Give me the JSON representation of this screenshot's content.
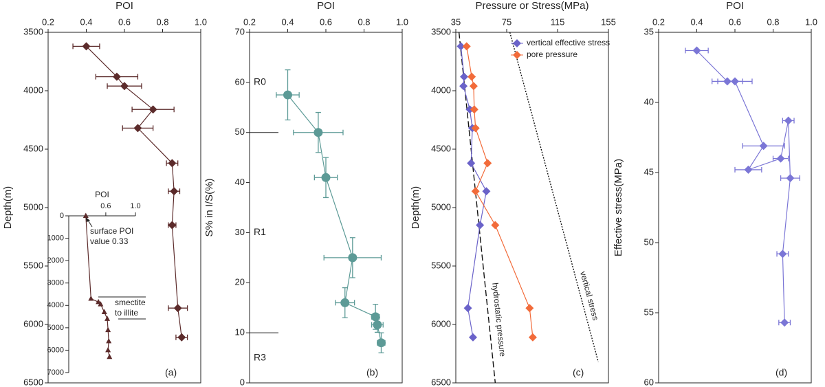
{
  "chart_data": [
    {
      "type": "line",
      "panel": "(a)",
      "xlabel": "POI",
      "ylabel": "Depth(m)",
      "xlim": [
        0.2,
        1
      ],
      "xticks": [
        0.2,
        0.4,
        0.6,
        0.8,
        {
          "value": 1,
          "label": "1.0"
        }
      ],
      "ylim": [
        3500,
        6500
      ],
      "yticks": [
        3500,
        4000,
        4500,
        5000,
        5500,
        6000,
        6500
      ],
      "y_inverted": true,
      "marker": "diamond",
      "color": "#5c2b2b",
      "x": [
        0.4,
        0.56,
        0.6,
        0.75,
        0.67,
        0.85,
        0.86,
        0.85,
        0.88,
        0.9
      ],
      "y": [
        3620,
        3880,
        3960,
        4160,
        4320,
        4620,
        4860,
        5150,
        5860,
        6110
      ],
      "xerr": [
        0.07,
        0.11,
        0.09,
        0.11,
        0.08,
        0.03,
        0.03,
        0.02,
        0.05,
        0.03
      ]
    },
    {
      "type": "line",
      "xlabel": "POI",
      "xlim": [
        0.1,
        1
      ],
      "xticks": [
        0.6,
        {
          "value": 1,
          "label": "1.0"
        }
      ],
      "ylim": [
        0,
        7000
      ],
      "yticks": [
        0,
        1000,
        2000,
        3000,
        4000,
        5000,
        6000,
        7000
      ],
      "y_inverted": true,
      "marker": "triangle",
      "color": "#5c2b2b",
      "x": [
        0.33,
        0.4,
        0.5,
        0.53,
        0.58,
        0.62,
        0.63,
        0.64,
        0.63,
        0.65
      ],
      "y": [
        0,
        3700,
        3850,
        3950,
        4300,
        4600,
        5100,
        5600,
        6000,
        6300
      ],
      "annotations": [
        {
          "text": "surface POI value 0.33"
        },
        {
          "text": "smectite to illite"
        }
      ]
    },
    {
      "type": "line",
      "panel": "(b)",
      "xlabel": "POI",
      "ylabel": "S% in I/S(%)",
      "xlim": [
        0.2,
        1
      ],
      "xticks": [
        0.2,
        0.4,
        0.6,
        0.8,
        {
          "value": 1,
          "label": "1.0"
        }
      ],
      "ylim": [
        0,
        70
      ],
      "yticks": [
        0,
        10,
        20,
        30,
        40,
        50,
        60,
        70
      ],
      "y_inverted": false,
      "marker": "circle",
      "color": "#5c9a96",
      "x": [
        0.4,
        0.56,
        0.6,
        0.74,
        0.7,
        0.86,
        0.87,
        0.89
      ],
      "y": [
        57.5,
        50,
        41,
        25,
        16,
        13.2,
        11.6,
        8
      ],
      "xerr": [
        0.06,
        0.13,
        0.06,
        0.15,
        0.05,
        0.02,
        0.03,
        0.02
      ],
      "yerr": [
        5,
        4,
        4,
        4,
        3,
        2.5,
        1.5,
        2
      ],
      "zones": [
        {
          "label": "R0",
          "range": [
            50,
            70
          ]
        },
        {
          "label": "R1",
          "range": [
            10,
            50
          ]
        },
        {
          "label": "R3",
          "range": [
            0,
            10
          ]
        }
      ]
    },
    {
      "type": "line",
      "panel": "(c)",
      "xlabel": "Pressure or Stress(MPa)",
      "ylabel": "Depth(m)",
      "xlim": [
        35,
        155
      ],
      "xticks": [
        35,
        75,
        115,
        155
      ],
      "ylim": [
        3500,
        6500
      ],
      "yticks": [
        3500,
        4000,
        4500,
        5000,
        5500,
        6000,
        6500
      ],
      "y_inverted": true,
      "marker": "diamond",
      "legend": "upper right",
      "series": [
        {
          "name": "vertical effective stress",
          "color": "#6a62c9",
          "x": [
            39,
            41.5,
            41,
            46,
            48,
            47,
            59,
            54,
            44.5,
            48.5
          ],
          "y": [
            3620,
            3880,
            3960,
            4160,
            4320,
            4620,
            4860,
            5150,
            5860,
            6110
          ]
        },
        {
          "name": "pore pressure",
          "color": "#f26b3a",
          "x": [
            43.5,
            47.5,
            49,
            49.5,
            50.5,
            60,
            50.5,
            66,
            93,
            95.5
          ],
          "y": [
            3620,
            3880,
            3960,
            4160,
            4320,
            4620,
            4860,
            5150,
            5860,
            6110
          ]
        }
      ],
      "reference_lines": [
        {
          "label": "hydrostatic pressure",
          "style": "dashed",
          "x": [
            37.5,
            66
          ],
          "y": [
            3500,
            6500
          ]
        },
        {
          "label": "vertical stress",
          "style": "dotted",
          "x": [
            77.5,
            147
          ],
          "y": [
            3500,
            6320
          ]
        }
      ]
    },
    {
      "type": "line",
      "panel": "(d)",
      "xlabel": "POI",
      "ylabel": "Effective stress(MPa)",
      "xlim": [
        0.2,
        1
      ],
      "xticks": [
        0.2,
        0.4,
        0.6,
        0.8,
        {
          "value": 1,
          "label": "1.0"
        }
      ],
      "ylim": [
        35,
        60
      ],
      "yticks": [
        35,
        40,
        45,
        50,
        55,
        60
      ],
      "y_inverted": true,
      "marker": "diamond",
      "color": "#7b76d6",
      "x": [
        0.4,
        0.56,
        0.6,
        0.75,
        0.67,
        0.84,
        0.88,
        0.89,
        0.85,
        0.86
      ],
      "y": [
        36.3,
        38.5,
        38.5,
        43.1,
        44.8,
        44,
        41.3,
        45.4,
        50.8,
        55.7
      ],
      "xerr": [
        0.06,
        0.08,
        0.09,
        0.11,
        0.07,
        0.04,
        0.03,
        0.05,
        0.03,
        0.03
      ]
    }
  ]
}
